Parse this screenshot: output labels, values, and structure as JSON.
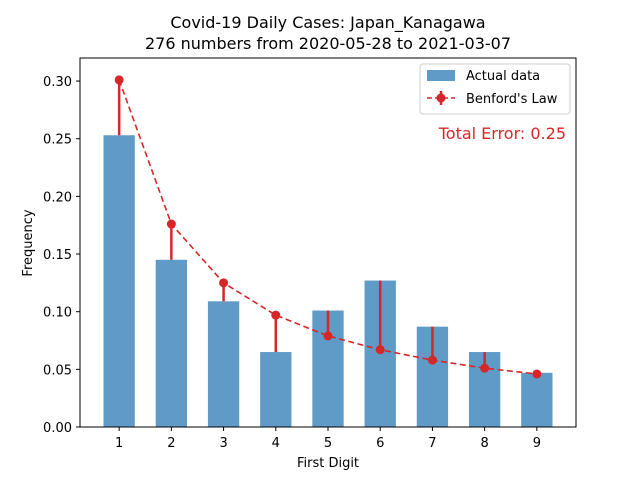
{
  "chart_data": {
    "type": "bar",
    "title": "Covid-19 Daily Cases: Japan_Kanagawa",
    "subtitle": "276 numbers from 2020-05-28 to 2021-03-07",
    "xlabel": "First Digit",
    "ylabel": "Frequency",
    "categories": [
      "1",
      "2",
      "3",
      "4",
      "5",
      "6",
      "7",
      "8",
      "9"
    ],
    "x_ticks": [
      1,
      2,
      3,
      4,
      5,
      6,
      7,
      8,
      9
    ],
    "ylim": [
      0,
      0.32
    ],
    "y_ticks": [
      0.0,
      0.05,
      0.1,
      0.15,
      0.2,
      0.25,
      0.3
    ],
    "y_tick_labels": [
      "0.00",
      "0.05",
      "0.10",
      "0.15",
      "0.20",
      "0.25",
      "0.30"
    ],
    "grid": false,
    "legend_position": "top-right",
    "series": [
      {
        "name": "Actual data",
        "kind": "bar",
        "color": "#5f9bc6",
        "values": [
          0.253,
          0.145,
          0.109,
          0.065,
          0.101,
          0.127,
          0.087,
          0.065,
          0.047
        ]
      },
      {
        "name": "Benford's Law",
        "kind": "line-with-errorbars",
        "color": "#d62728",
        "values": [
          0.301,
          0.176,
          0.125,
          0.097,
          0.079,
          0.067,
          0.058,
          0.051,
          0.046
        ]
      }
    ],
    "annotation": "Total Error: 0.25",
    "annotation_color": "#d62728"
  }
}
